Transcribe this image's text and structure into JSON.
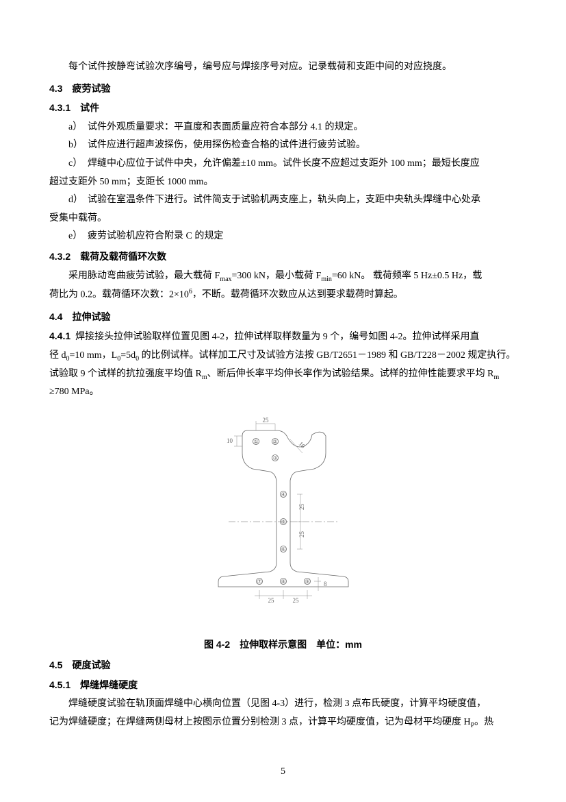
{
  "p_intro": "每个试件按静弯试验次序编号，编号应与焊接序号对应。记录载荷和支距中间的对应挠度。",
  "h4_3": "4.3　疲劳试验",
  "h4_3_1": "4.3.1　试件",
  "item_a_label": "a）",
  "item_a": "试件外观质量要求：平直度和表面质量应符合本部分 4.1 的规定。",
  "item_b_label": "b）",
  "item_b": "试件应进行超声波探伤，使用探伤检查合格的试件进行疲劳试验。",
  "item_c_label": "c）",
  "item_c": "焊缝中心应位于试件中央，允许偏差±10 mm。试件长度不应超过支距外 100 mm；最短长度应",
  "item_c_cont": "超过支距外 50 mm；支距长 1000 mm。",
  "item_d_label": "d）",
  "item_d": "试验在室温条件下进行。试件简支于试验机两支座上，轨头向上，支距中央轨头焊缝中心处承",
  "item_d_cont": "受集中载荷。",
  "item_e_label": "e）",
  "item_e": "疲劳试验机应符合附录 C 的规定",
  "h4_3_2": "4.3.2　载荷及载荷循环次数",
  "p4_3_2_a": "采用脉动弯曲疲劳试验，最大载荷 F",
  "p4_3_2_b": "=300 kN，最小载荷 F",
  "p4_3_2_c": "=60 kN。 载荷频率 5 Hz±0.5 Hz，载",
  "p4_3_2_cont_a": "荷比为 0.2。载荷循环次数：2×10",
  "p4_3_2_cont_b": "，不断。载荷循环次数应从达到要求载荷时算起。",
  "sub_max": "max",
  "sub_min": "min",
  "sup_6": "6",
  "h4_4": "4.4　拉伸试验",
  "h4_4_1": "4.4.1",
  "p4_4_1_a": "焊接接头拉伸试验取样位置见图 4-2，拉伸试样取样数量为 9 个，编号如图 4-2。拉伸试样采用直",
  "p4_4_1_b_a": "径 d",
  "p4_4_1_b_b": "=10 mm，L",
  "p4_4_1_b_c": "=5d",
  "p4_4_1_b_d": " 的比例试样。试样加工尺寸及试验方法按 GB/T2651－1989 和 GB/T228－2002 规定执行。",
  "sub_0": "0",
  "p4_4_1_c_a": "试验取 9 个试样的抗拉强度平均值 R",
  "p4_4_1_c_b": "、断后伸长率平均伸长率作为试验结果。试样的拉伸性能要求平均 R",
  "sub_m": "m",
  "p4_4_1_d": "≥780 MPa。",
  "fig_caption": "图 4-2　拉伸取样示意图　单位：mm",
  "h4_5": "4.5　硬度试验",
  "h4_5_1": "4.5.1　焊缝焊缝硬度",
  "p4_5_1_a": "焊缝硬度试验在轨顶面焊缝中心横向位置（见图 4-3）进行，检测 3 点布氏硬度，计算平均硬度值，",
  "p4_5_1_b_a": "记为焊缝硬度；在焊缝两侧母材上按图示位置分别检测 3 点，计算平均硬度值，记为母材平均硬度 H",
  "p4_5_1_b_b": "。热",
  "sub_p": "P",
  "page_num": "5",
  "diagram": {
    "stroke": "#666666",
    "stroke_width": 0.8,
    "dim_stroke": "#888888",
    "dim_font_size": 9,
    "circle_r": 4.5,
    "labels": {
      "d1": "①",
      "d2": "②",
      "d3": "③",
      "d4": "④",
      "d5": "⑤",
      "d6": "⑥",
      "d7": "⑦",
      "d8": "⑧",
      "d9": "⑨"
    },
    "dims": {
      "d10": "10",
      "d25": "25",
      "d8": "8"
    }
  }
}
